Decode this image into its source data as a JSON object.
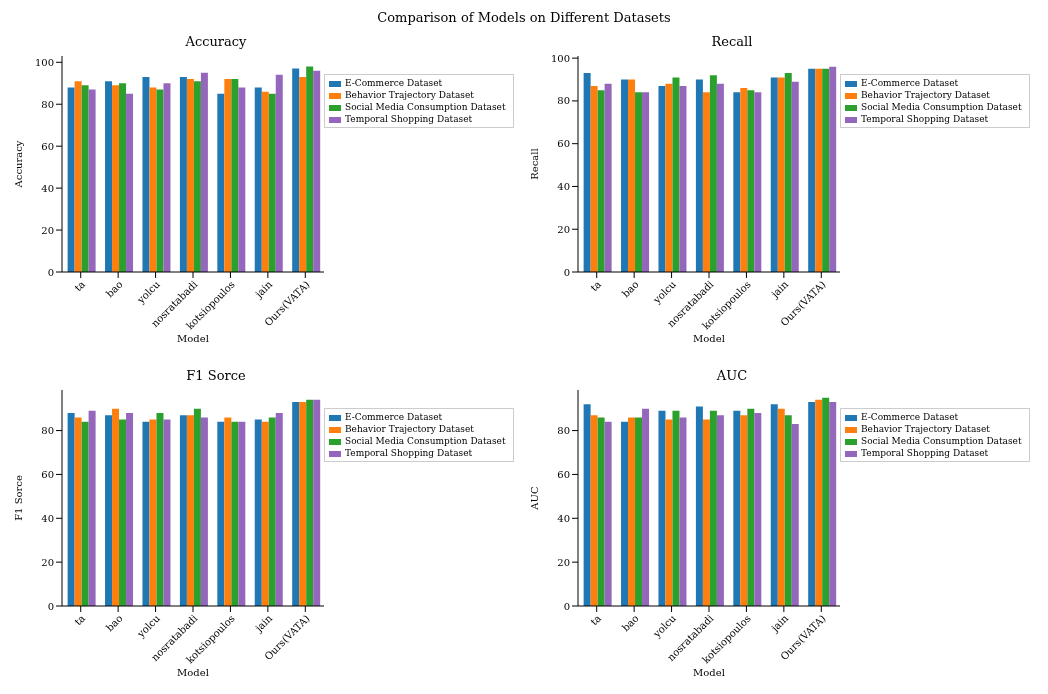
{
  "chart_data": [
    {
      "type": "bar",
      "title": "Accuracy",
      "annotations": [
        "Comparison of Models on Different Datasets"
      ],
      "xlabel": "Model",
      "ylabel": "Accuracy",
      "categories": [
        "ta",
        "bao",
        "yolcu",
        "nosratabadi",
        "kotsiopoulos",
        "jain",
        "Ours(VATA)"
      ],
      "ylim": [
        0,
        103
      ],
      "yticks": [
        0,
        20,
        40,
        60,
        80,
        100
      ],
      "grid": false,
      "legend": "top right",
      "series": [
        {
          "name": "E-Commerce Dataset",
          "color": "#1f77b4",
          "values": [
            88,
            91,
            93,
            93,
            85,
            88,
            97
          ]
        },
        {
          "name": "Behavior Trajectory Dataset",
          "color": "#ff7f0e",
          "values": [
            91,
            89,
            88,
            92,
            92,
            86,
            93
          ]
        },
        {
          "name": "Social Media Consumption Dataset",
          "color": "#2ca02c",
          "values": [
            89,
            90,
            87,
            91,
            92,
            85,
            98
          ]
        },
        {
          "name": "Temporal Shopping Dataset",
          "color": "#9467bd",
          "values": [
            87,
            85,
            90,
            95,
            88,
            94,
            96
          ]
        }
      ]
    },
    {
      "type": "bar",
      "title": "Recall",
      "xlabel": "Model",
      "ylabel": "Recall",
      "categories": [
        "ta",
        "bao",
        "yolcu",
        "nosratabadi",
        "kotsiopoulos",
        "jain",
        "Ours(VATA)"
      ],
      "ylim": [
        0,
        101
      ],
      "yticks": [
        0,
        20,
        40,
        60,
        80,
        100
      ],
      "grid": false,
      "legend": "top right",
      "series": [
        {
          "name": "E-Commerce Dataset",
          "color": "#1f77b4",
          "values": [
            93,
            90,
            87,
            90,
            84,
            91,
            95
          ]
        },
        {
          "name": "Behavior Trajectory Dataset",
          "color": "#ff7f0e",
          "values": [
            87,
            90,
            88,
            84,
            86,
            91,
            95
          ]
        },
        {
          "name": "Social Media Consumption Dataset",
          "color": "#2ca02c",
          "values": [
            85,
            84,
            91,
            92,
            85,
            93,
            95
          ]
        },
        {
          "name": "Temporal Shopping Dataset",
          "color": "#9467bd",
          "values": [
            88,
            84,
            87,
            88,
            84,
            89,
            96
          ]
        }
      ]
    },
    {
      "type": "bar",
      "title": "F1 Sorce",
      "xlabel": "Model",
      "ylabel": "F1 Sorce",
      "categories": [
        "ta",
        "bao",
        "yolcu",
        "nosratabadi",
        "kotsiopoulos",
        "jain",
        "Ours(VATA)"
      ],
      "ylim": [
        0,
        98.5
      ],
      "yticks": [
        0,
        20,
        40,
        60,
        80
      ],
      "grid": false,
      "legend": "top right",
      "series": [
        {
          "name": "E-Commerce Dataset",
          "color": "#1f77b4",
          "values": [
            88,
            87,
            84,
            87,
            84,
            85,
            93
          ]
        },
        {
          "name": "Behavior Trajectory Dataset",
          "color": "#ff7f0e",
          "values": [
            86,
            90,
            85,
            87,
            86,
            84,
            93
          ]
        },
        {
          "name": "Social Media Consumption Dataset",
          "color": "#2ca02c",
          "values": [
            84,
            85,
            88,
            90,
            84,
            86,
            94
          ]
        },
        {
          "name": "Temporal Shopping Dataset",
          "color": "#9467bd",
          "values": [
            89,
            88,
            85,
            86,
            84,
            88,
            94
          ]
        }
      ]
    },
    {
      "type": "bar",
      "title": "AUC",
      "xlabel": "Model",
      "ylabel": "AUC",
      "categories": [
        "ta",
        "bao",
        "yolcu",
        "nosratabadi",
        "kotsiopoulos",
        "jain",
        "Ours(VATA)"
      ],
      "ylim": [
        0,
        98.5
      ],
      "yticks": [
        0,
        20,
        40,
        60,
        80
      ],
      "grid": false,
      "legend": "top right",
      "series": [
        {
          "name": "E-Commerce Dataset",
          "color": "#1f77b4",
          "values": [
            92,
            84,
            89,
            91,
            89,
            92,
            93
          ]
        },
        {
          "name": "Behavior Trajectory Dataset",
          "color": "#ff7f0e",
          "values": [
            87,
            86,
            85,
            85,
            87,
            90,
            94
          ]
        },
        {
          "name": "Social Media Consumption Dataset",
          "color": "#2ca02c",
          "values": [
            86,
            86,
            89,
            89,
            90,
            87,
            95
          ]
        },
        {
          "name": "Temporal Shopping Dataset",
          "color": "#9467bd",
          "values": [
            84,
            90,
            86,
            87,
            88,
            83,
            93
          ]
        }
      ]
    }
  ]
}
